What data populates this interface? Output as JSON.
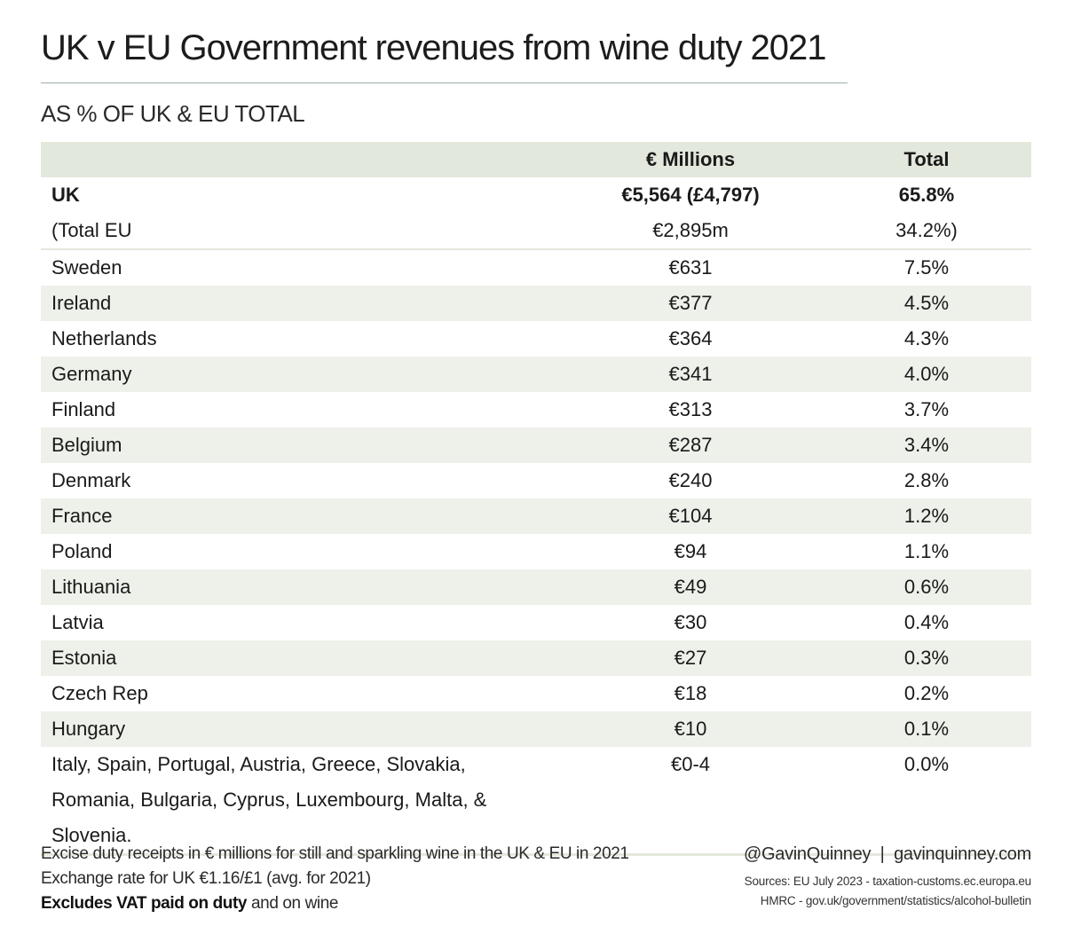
{
  "title": "UK v EU Government revenues from wine duty 2021",
  "subtitle": "AS % OF UK & EU TOTAL",
  "table": {
    "headers": [
      "",
      "€ Millions",
      "Total"
    ],
    "rows": [
      {
        "country": "UK",
        "millions": "€5,564 (£4,797)",
        "total": "65.8%"
      },
      {
        "country": "(Total EU",
        "millions": "€2,895m",
        "total": "34.2%)"
      },
      {
        "country": "Sweden",
        "millions": "€631",
        "total": "7.5%"
      },
      {
        "country": "Ireland",
        "millions": "€377",
        "total": "4.5%"
      },
      {
        "country": "Netherlands",
        "millions": "€364",
        "total": "4.3%"
      },
      {
        "country": "Germany",
        "millions": "€341",
        "total": "4.0%"
      },
      {
        "country": "Finland",
        "millions": "€313",
        "total": "3.7%"
      },
      {
        "country": "Belgium",
        "millions": "€287",
        "total": "3.4%"
      },
      {
        "country": "Denmark",
        "millions": "€240",
        "total": "2.8%"
      },
      {
        "country": "France",
        "millions": "€104",
        "total": "1.2%"
      },
      {
        "country": "Poland",
        "millions": "€94",
        "total": "1.1%"
      },
      {
        "country": "Lithuania",
        "millions": "€49",
        "total": "0.6%"
      },
      {
        "country": "Latvia",
        "millions": "€30",
        "total": "0.4%"
      },
      {
        "country": "Estonia",
        "millions": "€27",
        "total": "0.3%"
      },
      {
        "country": "Czech Rep",
        "millions": "€18",
        "total": "0.2%"
      },
      {
        "country": "Hungary",
        "millions": "€10",
        "total": "0.1%"
      },
      {
        "country": "Italy, Spain, Portugal, Austria, Greece, Slovakia, Romania, Bulgaria, Cyprus, Luxembourg, Malta, & Slovenia.",
        "millions": "€0-4",
        "total": "0.0%"
      }
    ]
  },
  "footer": {
    "note_1": "Excise duty receipts in € millions for still and sparkling wine in the UK & EU in 2021",
    "note_2": "Exchange rate for UK €1.16/£1 (avg. for 2021)",
    "note_3_bold": "Excludes VAT paid on duty",
    "note_3_rest": " and on wine",
    "handle": "@GavinQuinney  |  gavinquinney.com",
    "source_1": "Sources: EU July 2023 - taxation-customs.ec.europa.eu",
    "source_2": "HMRC - gov.uk/government/statistics/alcohol-bulletin"
  },
  "colors": {
    "header_band": "#e3e8dc",
    "row_shade": "#eef1ea",
    "title_rule": "#9fb0a6"
  }
}
